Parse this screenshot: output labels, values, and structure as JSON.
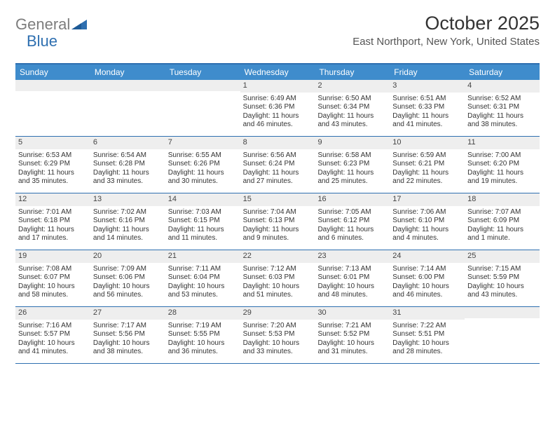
{
  "logo": {
    "word1": "General",
    "word2": "Blue"
  },
  "title": "October 2025",
  "location": "East Northport, New York, United States",
  "colors": {
    "header_bg": "#3f8ccc",
    "header_text": "#ffffff",
    "rule": "#2e6fb0",
    "daynum_bg": "#eeeeee",
    "logo_gray": "#7d7d7d",
    "logo_blue": "#2e6fb0"
  },
  "days_of_week": [
    "Sunday",
    "Monday",
    "Tuesday",
    "Wednesday",
    "Thursday",
    "Friday",
    "Saturday"
  ],
  "weeks": [
    [
      {
        "n": "",
        "sr": "",
        "ss": "",
        "dl": ""
      },
      {
        "n": "",
        "sr": "",
        "ss": "",
        "dl": ""
      },
      {
        "n": "",
        "sr": "",
        "ss": "",
        "dl": ""
      },
      {
        "n": "1",
        "sr": "Sunrise: 6:49 AM",
        "ss": "Sunset: 6:36 PM",
        "dl": "Daylight: 11 hours and 46 minutes."
      },
      {
        "n": "2",
        "sr": "Sunrise: 6:50 AM",
        "ss": "Sunset: 6:34 PM",
        "dl": "Daylight: 11 hours and 43 minutes."
      },
      {
        "n": "3",
        "sr": "Sunrise: 6:51 AM",
        "ss": "Sunset: 6:33 PM",
        "dl": "Daylight: 11 hours and 41 minutes."
      },
      {
        "n": "4",
        "sr": "Sunrise: 6:52 AM",
        "ss": "Sunset: 6:31 PM",
        "dl": "Daylight: 11 hours and 38 minutes."
      }
    ],
    [
      {
        "n": "5",
        "sr": "Sunrise: 6:53 AM",
        "ss": "Sunset: 6:29 PM",
        "dl": "Daylight: 11 hours and 35 minutes."
      },
      {
        "n": "6",
        "sr": "Sunrise: 6:54 AM",
        "ss": "Sunset: 6:28 PM",
        "dl": "Daylight: 11 hours and 33 minutes."
      },
      {
        "n": "7",
        "sr": "Sunrise: 6:55 AM",
        "ss": "Sunset: 6:26 PM",
        "dl": "Daylight: 11 hours and 30 minutes."
      },
      {
        "n": "8",
        "sr": "Sunrise: 6:56 AM",
        "ss": "Sunset: 6:24 PM",
        "dl": "Daylight: 11 hours and 27 minutes."
      },
      {
        "n": "9",
        "sr": "Sunrise: 6:58 AM",
        "ss": "Sunset: 6:23 PM",
        "dl": "Daylight: 11 hours and 25 minutes."
      },
      {
        "n": "10",
        "sr": "Sunrise: 6:59 AM",
        "ss": "Sunset: 6:21 PM",
        "dl": "Daylight: 11 hours and 22 minutes."
      },
      {
        "n": "11",
        "sr": "Sunrise: 7:00 AM",
        "ss": "Sunset: 6:20 PM",
        "dl": "Daylight: 11 hours and 19 minutes."
      }
    ],
    [
      {
        "n": "12",
        "sr": "Sunrise: 7:01 AM",
        "ss": "Sunset: 6:18 PM",
        "dl": "Daylight: 11 hours and 17 minutes."
      },
      {
        "n": "13",
        "sr": "Sunrise: 7:02 AM",
        "ss": "Sunset: 6:16 PM",
        "dl": "Daylight: 11 hours and 14 minutes."
      },
      {
        "n": "14",
        "sr": "Sunrise: 7:03 AM",
        "ss": "Sunset: 6:15 PM",
        "dl": "Daylight: 11 hours and 11 minutes."
      },
      {
        "n": "15",
        "sr": "Sunrise: 7:04 AM",
        "ss": "Sunset: 6:13 PM",
        "dl": "Daylight: 11 hours and 9 minutes."
      },
      {
        "n": "16",
        "sr": "Sunrise: 7:05 AM",
        "ss": "Sunset: 6:12 PM",
        "dl": "Daylight: 11 hours and 6 minutes."
      },
      {
        "n": "17",
        "sr": "Sunrise: 7:06 AM",
        "ss": "Sunset: 6:10 PM",
        "dl": "Daylight: 11 hours and 4 minutes."
      },
      {
        "n": "18",
        "sr": "Sunrise: 7:07 AM",
        "ss": "Sunset: 6:09 PM",
        "dl": "Daylight: 11 hours and 1 minute."
      }
    ],
    [
      {
        "n": "19",
        "sr": "Sunrise: 7:08 AM",
        "ss": "Sunset: 6:07 PM",
        "dl": "Daylight: 10 hours and 58 minutes."
      },
      {
        "n": "20",
        "sr": "Sunrise: 7:09 AM",
        "ss": "Sunset: 6:06 PM",
        "dl": "Daylight: 10 hours and 56 minutes."
      },
      {
        "n": "21",
        "sr": "Sunrise: 7:11 AM",
        "ss": "Sunset: 6:04 PM",
        "dl": "Daylight: 10 hours and 53 minutes."
      },
      {
        "n": "22",
        "sr": "Sunrise: 7:12 AM",
        "ss": "Sunset: 6:03 PM",
        "dl": "Daylight: 10 hours and 51 minutes."
      },
      {
        "n": "23",
        "sr": "Sunrise: 7:13 AM",
        "ss": "Sunset: 6:01 PM",
        "dl": "Daylight: 10 hours and 48 minutes."
      },
      {
        "n": "24",
        "sr": "Sunrise: 7:14 AM",
        "ss": "Sunset: 6:00 PM",
        "dl": "Daylight: 10 hours and 46 minutes."
      },
      {
        "n": "25",
        "sr": "Sunrise: 7:15 AM",
        "ss": "Sunset: 5:59 PM",
        "dl": "Daylight: 10 hours and 43 minutes."
      }
    ],
    [
      {
        "n": "26",
        "sr": "Sunrise: 7:16 AM",
        "ss": "Sunset: 5:57 PM",
        "dl": "Daylight: 10 hours and 41 minutes."
      },
      {
        "n": "27",
        "sr": "Sunrise: 7:17 AM",
        "ss": "Sunset: 5:56 PM",
        "dl": "Daylight: 10 hours and 38 minutes."
      },
      {
        "n": "28",
        "sr": "Sunrise: 7:19 AM",
        "ss": "Sunset: 5:55 PM",
        "dl": "Daylight: 10 hours and 36 minutes."
      },
      {
        "n": "29",
        "sr": "Sunrise: 7:20 AM",
        "ss": "Sunset: 5:53 PM",
        "dl": "Daylight: 10 hours and 33 minutes."
      },
      {
        "n": "30",
        "sr": "Sunrise: 7:21 AM",
        "ss": "Sunset: 5:52 PM",
        "dl": "Daylight: 10 hours and 31 minutes."
      },
      {
        "n": "31",
        "sr": "Sunrise: 7:22 AM",
        "ss": "Sunset: 5:51 PM",
        "dl": "Daylight: 10 hours and 28 minutes."
      },
      {
        "n": "",
        "sr": "",
        "ss": "",
        "dl": ""
      }
    ]
  ]
}
